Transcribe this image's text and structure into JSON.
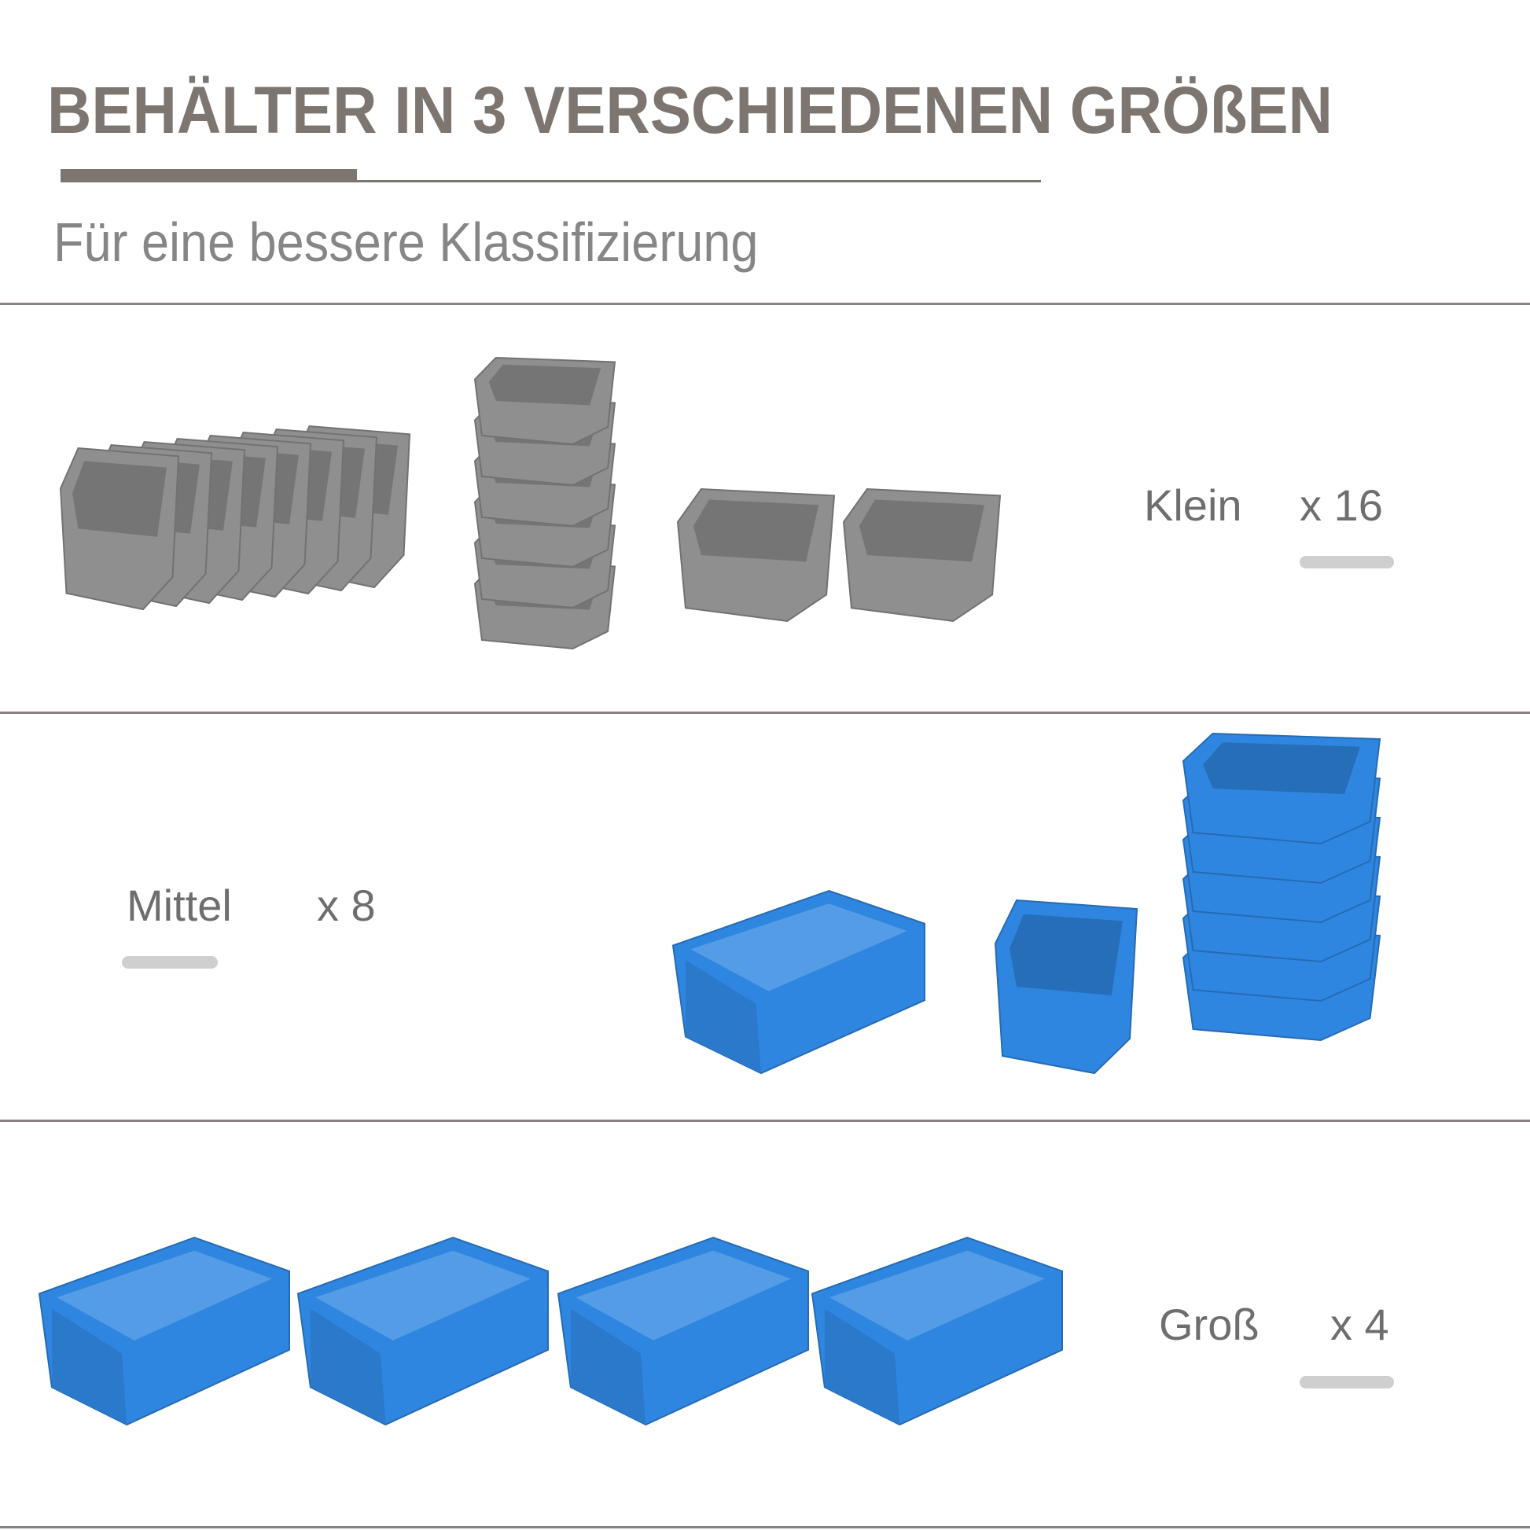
{
  "header": {
    "title": "BEHÄLTER IN 3 VERSCHIEDENEN GRÖßEN",
    "subtitle": "Für eine bessere Klassifizierung"
  },
  "sizes": [
    {
      "label": "Klein",
      "quantity": "x 16",
      "color": "#8f8f8f"
    },
    {
      "label": "Mittel",
      "quantity": "x 8",
      "color": "#2f86e0"
    },
    {
      "label": "Groß",
      "quantity": "x 4",
      "color": "#2f86e0"
    }
  ],
  "colors": {
    "title": "#7d7570",
    "divider": "#8a8280",
    "pill": "#cfcfcf"
  }
}
